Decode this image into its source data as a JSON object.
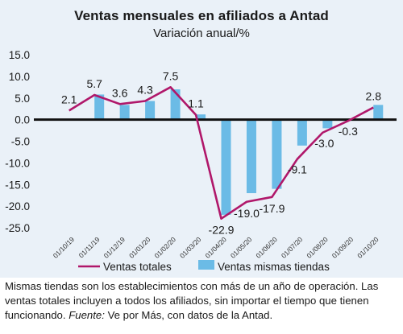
{
  "chart_data": {
    "type": "bar+line",
    "title": "Ventas mensuales en afiliados a Antad",
    "subtitle": "Variación anual/%",
    "categories": [
      "01/10/19",
      "01/11/19",
      "01/12/19",
      "01/01/20",
      "01/02/20",
      "01/03/20",
      "01/04/20",
      "01/05/20",
      "01/06/20",
      "01/07/20",
      "01/08/20",
      "01/09/20",
      "01/10/20"
    ],
    "series": [
      {
        "name": "Ventas totales",
        "type": "line",
        "color": "#b0176a",
        "values": [
          2.1,
          5.7,
          3.6,
          4.3,
          7.5,
          1.1,
          -22.9,
          -19.0,
          -17.9,
          -9.1,
          -3.0,
          -0.3,
          2.8
        ]
      },
      {
        "name": "Ventas mismas tiendas",
        "type": "bar",
        "color": "#6bbbe6",
        "values": [
          -0.1,
          5.8,
          3.4,
          4.3,
          7.0,
          1.2,
          -22.0,
          -17.0,
          -16.0,
          -6.0,
          -2.0,
          -0.1,
          3.4
        ]
      }
    ],
    "value_labels": [
      "2.1",
      "5.7",
      "3.6",
      "4.3",
      "7.5",
      "1.1",
      "-22.9",
      "-19.0",
      "-17.9",
      "-9.1",
      "-3.0",
      "-0.3",
      "2.8"
    ],
    "yticks": [
      "15.0",
      "10.0",
      "5.0",
      "0.0",
      "-5.0",
      "-10.0",
      "-15.0",
      "-20.0",
      "-25.0"
    ],
    "ylim": [
      -25,
      15
    ],
    "legend_placement": "bottom",
    "grid": false
  },
  "footnote": {
    "text": "Mismas tiendas son los establecimientos con más de un año de operación. Las ventas totales incluyen a todos los afiliados, sin importar el tiempo que tienen funcionando.",
    "source_label": "Fuente:",
    "source_text": "Ve por Más, con datos de la Antad."
  }
}
